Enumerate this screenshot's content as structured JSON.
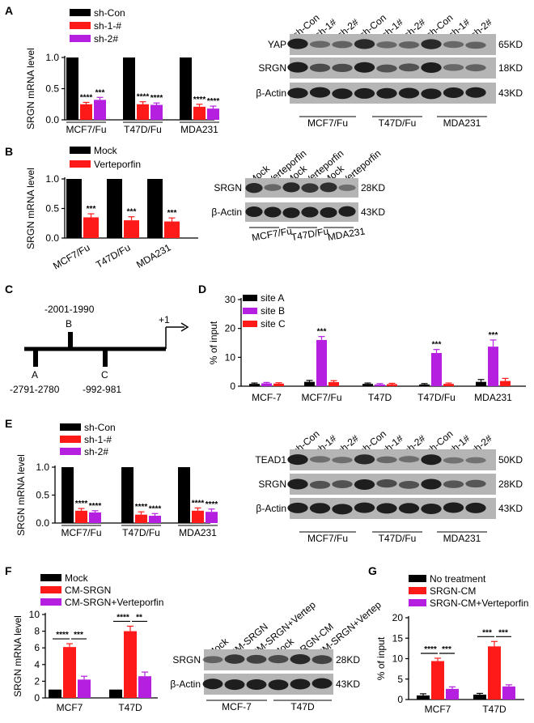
{
  "colors": {
    "black": "#000000",
    "red": "#ff1a1a",
    "purple": "#b51fe0",
    "band_bg": "#b5b5b5",
    "band": "#1e1e1e"
  },
  "panels": {
    "A": {
      "label": "A",
      "ylabel": "SRGN mRNA level",
      "legend": [
        "sh-Con",
        "sh-1-#",
        "sh-2#"
      ],
      "stars": [
        [
          "****",
          "***"
        ],
        [
          "****",
          "****"
        ],
        [
          "****",
          "****"
        ]
      ],
      "blot": {
        "lanes": [
          "sh-Con",
          "sh-1#",
          "sh-2#",
          "sh-Con",
          "sh-1#",
          "sh-2#",
          "sh-Con",
          "sh-1#",
          "sh-2#"
        ],
        "rows": [
          {
            "name": "YAP",
            "kd": "65KD"
          },
          {
            "name": "SRGN",
            "kd": "18KD"
          },
          {
            "name": "β-Actin",
            "kd": "43KD"
          }
        ],
        "groups": [
          "MCF7/Fu",
          "T47D/Fu",
          "MDA231"
        ]
      }
    },
    "B": {
      "label": "B",
      "ylabel": "SRGN mRNA level",
      "legend": [
        "Mock",
        "Verteporfin"
      ],
      "stars": [
        "***",
        "***",
        "***"
      ],
      "blot": {
        "lanes": [
          "Mock",
          "Verteporfin",
          "Mock",
          "Verteporfin",
          "Mock",
          "Verteporfin"
        ],
        "rows": [
          {
            "name": "SRGN",
            "kd": "28KD"
          },
          {
            "name": "β-Actin",
            "kd": "43KD"
          }
        ],
        "groups": [
          "MCF7/Fu",
          "T47D/Fu",
          "MDA231"
        ]
      }
    },
    "C": {
      "label": "C",
      "sites": [
        {
          "name": "A",
          "pos": "-2791-2780"
        },
        {
          "name": "B",
          "pos": "-2001-1990"
        },
        {
          "name": "C",
          "pos": "-992-981"
        }
      ],
      "tss": "+1"
    },
    "D": {
      "label": "D",
      "stars": [
        "***",
        "***",
        "***"
      ]
    },
    "E": {
      "label": "E",
      "ylabel": "SRGN mRNA level",
      "legend": [
        "sh-Con",
        "sh-1-#",
        "sh-2#"
      ],
      "stars": [
        [
          "****",
          "****"
        ],
        [
          "****",
          "****"
        ],
        [
          "****",
          "****"
        ]
      ],
      "blot": {
        "lanes": [
          "sh-Con",
          "sh-1#",
          "sh-2#",
          "sh-Con",
          "sh-1#",
          "sh-2#",
          "sh-Con",
          "sh-1#",
          "sh-2#"
        ],
        "rows": [
          {
            "name": "TEAD1",
            "kd": "50KD"
          },
          {
            "name": "SRGN",
            "kd": "28KD"
          },
          {
            "name": "β-Actin",
            "kd": "43KD"
          }
        ],
        "groups": [
          "MCF7/Fu",
          "T47D/Fu",
          "MDA231"
        ]
      }
    },
    "F": {
      "label": "F",
      "ylabel": "SRGN mRNA level",
      "legend": [
        "Mock",
        "CM-SRGN",
        "CM-SRGN+Verteporfin"
      ],
      "stars": [
        [
          "****",
          "***"
        ],
        [
          "****",
          "**"
        ]
      ],
      "blot": {
        "lanes": [
          "Mock",
          "CM-SRGN",
          "CM-SRGN+Vertep",
          "Mock",
          "SRGN-CM",
          "CM-SRGN+Vertep"
        ],
        "rows": [
          {
            "name": "SRGN",
            "kd": "28KD"
          },
          {
            "name": "β-Actin",
            "kd": "43KD"
          }
        ],
        "groups": [
          "MCF-7",
          "T47D"
        ]
      }
    },
    "G": {
      "label": "G",
      "ylabel": "% of input",
      "legend": [
        "No treatment",
        "SRGN-CM",
        "SRGN-CM+Verteporfin"
      ],
      "stars": [
        [
          "****",
          "***"
        ],
        [
          "***",
          "***"
        ]
      ]
    }
  },
  "chart_data": [
    {
      "id": "A",
      "type": "bar",
      "title": "",
      "xlabel": "",
      "ylabel": "SRGN mRNA level",
      "ylim": [
        0,
        1.0
      ],
      "yticks": [
        0.0,
        0.5,
        1.0
      ],
      "categories": [
        "MCF7/Fu",
        "T47D/Fu",
        "MDA231"
      ],
      "series": [
        {
          "name": "sh-Con",
          "values": [
            1.0,
            1.0,
            1.0
          ],
          "errors": [
            0,
            0,
            0
          ]
        },
        {
          "name": "sh-1-#",
          "values": [
            0.25,
            0.25,
            0.21
          ],
          "errors": [
            0.03,
            0.04,
            0.04
          ]
        },
        {
          "name": "sh-2#",
          "values": [
            0.32,
            0.24,
            0.18
          ],
          "errors": [
            0.04,
            0.03,
            0.04
          ]
        }
      ]
    },
    {
      "id": "B",
      "type": "bar",
      "title": "",
      "xlabel": "",
      "ylabel": "SRGN mRNA level",
      "ylim": [
        0,
        1.0
      ],
      "yticks": [
        0.0,
        0.5,
        1.0
      ],
      "categories": [
        "MCF7/Fu",
        "T47D/Fu",
        "MDA231"
      ],
      "series": [
        {
          "name": "Mock",
          "values": [
            1.0,
            1.0,
            1.0
          ],
          "errors": [
            0,
            0,
            0
          ]
        },
        {
          "name": "Verteporfin",
          "values": [
            0.35,
            0.3,
            0.28
          ],
          "errors": [
            0.06,
            0.06,
            0.06
          ]
        }
      ]
    },
    {
      "id": "D",
      "type": "bar",
      "title": "",
      "xlabel": "",
      "ylabel": "% of input",
      "ylim": [
        0,
        30
      ],
      "yticks": [
        0,
        10,
        20,
        30
      ],
      "categories": [
        "MCF-7",
        "MCF7/Fu",
        "T47D",
        "T47D/Fu",
        "MDA231"
      ],
      "series": [
        {
          "name": "site A",
          "values": [
            0.8,
            1.5,
            0.8,
            0.6,
            1.5
          ],
          "errors": [
            0.3,
            0.5,
            0.3,
            0.3,
            0.8
          ]
        },
        {
          "name": "site B",
          "values": [
            1.0,
            16.0,
            0.6,
            11.5,
            13.7
          ],
          "errors": [
            0.3,
            1.2,
            0.3,
            1.2,
            2.3
          ]
        },
        {
          "name": "site C",
          "values": [
            0.9,
            1.4,
            0.7,
            0.8,
            1.8
          ],
          "errors": [
            0.3,
            0.5,
            0.3,
            0.3,
            0.9
          ]
        }
      ]
    },
    {
      "id": "E",
      "type": "bar",
      "title": "",
      "xlabel": "",
      "ylabel": "SRGN mRNA level",
      "ylim": [
        0,
        1.0
      ],
      "yticks": [
        0.0,
        0.5,
        1.0
      ],
      "categories": [
        "MCF7/Fu",
        "T47D/Fu",
        "MDA231"
      ],
      "series": [
        {
          "name": "sh-Con",
          "values": [
            1.0,
            1.0,
            1.0
          ],
          "errors": [
            0,
            0,
            0
          ]
        },
        {
          "name": "sh-1-#",
          "values": [
            0.22,
            0.15,
            0.22
          ],
          "errors": [
            0.04,
            0.05,
            0.05
          ]
        },
        {
          "name": "sh-2#",
          "values": [
            0.19,
            0.13,
            0.2
          ],
          "errors": [
            0.03,
            0.04,
            0.05
          ]
        }
      ]
    },
    {
      "id": "F",
      "type": "bar",
      "title": "",
      "xlabel": "",
      "ylabel": "SRGN mRNA level",
      "ylim": [
        0,
        10
      ],
      "yticks": [
        0,
        2,
        4,
        6,
        8,
        10
      ],
      "categories": [
        "MCF7",
        "T47D"
      ],
      "series": [
        {
          "name": "Mock",
          "values": [
            1.0,
            1.0
          ],
          "errors": [
            0,
            0
          ]
        },
        {
          "name": "CM-SRGN",
          "values": [
            6.1,
            8.0
          ],
          "errors": [
            0.4,
            0.6
          ]
        },
        {
          "name": "CM-SRGN+Verteporfin",
          "values": [
            2.2,
            2.6
          ],
          "errors": [
            0.4,
            0.5
          ]
        }
      ]
    },
    {
      "id": "G",
      "type": "bar",
      "title": "",
      "xlabel": "",
      "ylabel": "% of input",
      "ylim": [
        0,
        20
      ],
      "yticks": [
        0,
        5,
        10,
        15,
        20
      ],
      "categories": [
        "MCF7",
        "T47D"
      ],
      "series": [
        {
          "name": "No treatment",
          "values": [
            1.0,
            1.2
          ],
          "errors": [
            0.4,
            0.3
          ]
        },
        {
          "name": "SRGN-CM",
          "values": [
            9.4,
            13.0
          ],
          "errors": [
            0.7,
            1.2
          ]
        },
        {
          "name": "SRGN-CM+Verteporfin",
          "values": [
            2.6,
            3.2
          ],
          "errors": [
            0.5,
            0.4
          ]
        }
      ]
    }
  ]
}
